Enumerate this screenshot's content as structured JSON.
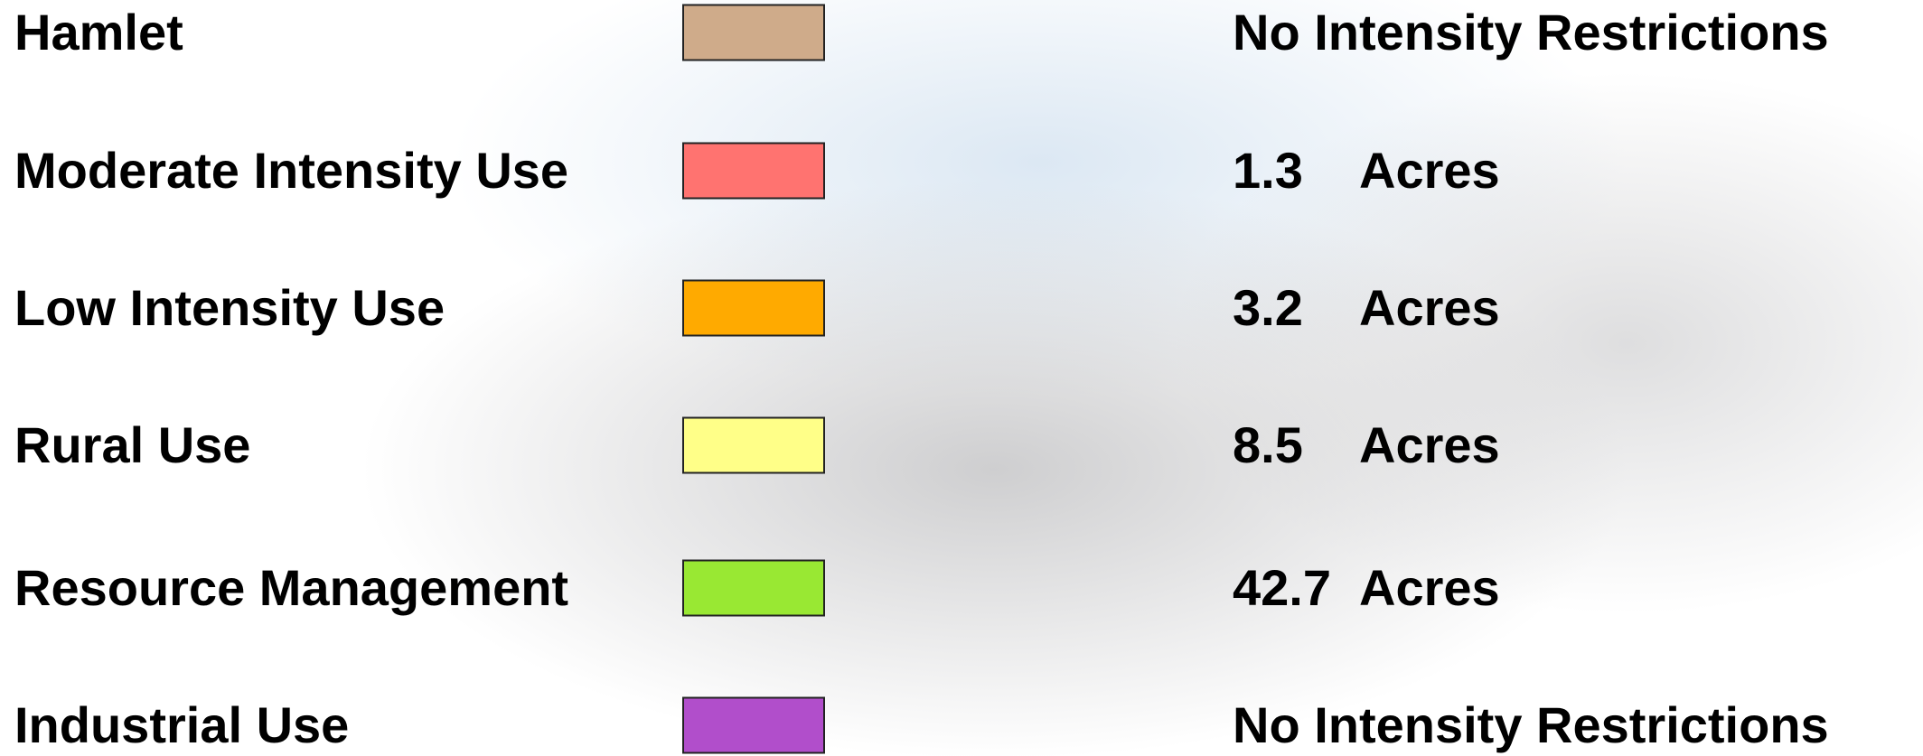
{
  "rows": [
    {
      "label": "Hamlet",
      "color": "#cfab8a",
      "value": "No Intensity Restrictions"
    },
    {
      "label": "Moderate Intensity Use",
      "color": "#ff7370",
      "amount": "1.3",
      "unit": "Acres"
    },
    {
      "label": "Low Intensity Use",
      "color": "#ffaa00",
      "amount": "3.2",
      "unit": "Acres"
    },
    {
      "label": "Rural Use",
      "color": "#ffff88",
      "amount": "8.5",
      "unit": "Acres"
    },
    {
      "label": "Resource Management",
      "color": "#99e833",
      "amount": "42.7",
      "unit": "Acres"
    },
    {
      "label": "Industrial Use",
      "color": "#b14ecb",
      "value": "No Intensity Restrictions"
    }
  ]
}
